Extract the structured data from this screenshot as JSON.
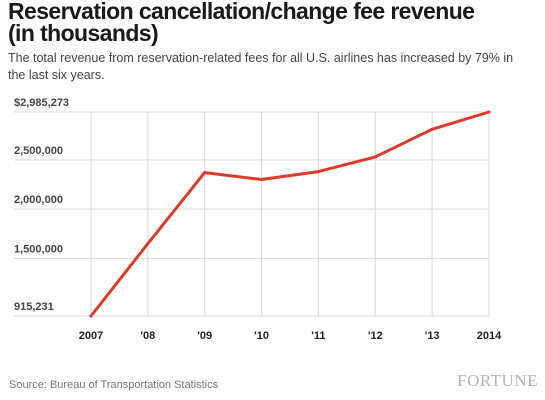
{
  "title": "Reservation cancellation/change fee revenue\n(in thousands)",
  "subtitle": "The total revenue from reservation-related fees for all U.S. airlines has increased by 79% in the last six years.",
  "source": "Source: Bureau of Transportation Statistics",
  "logo_text": "FORTUNE",
  "chart_data": {
    "type": "line",
    "x": [
      "2007",
      "'08",
      "'09",
      "'10",
      "'11",
      "'12",
      "'13",
      "2014"
    ],
    "series": [
      {
        "values": [
          915231,
          1650000,
          2370000,
          2300000,
          2380000,
          2530000,
          2810000,
          2985273
        ]
      }
    ],
    "ylim": [
      915231,
      2985273
    ],
    "yticks": [
      915231,
      1500000,
      2000000,
      2500000,
      2985273
    ],
    "ytick_labels": [
      "915,231",
      "1,500,000",
      "2,000,000",
      "2,500,000",
      "$2,985,273"
    ],
    "grid": true,
    "line_color": "#e03a2c",
    "grid_color": "#d9d9d9"
  }
}
